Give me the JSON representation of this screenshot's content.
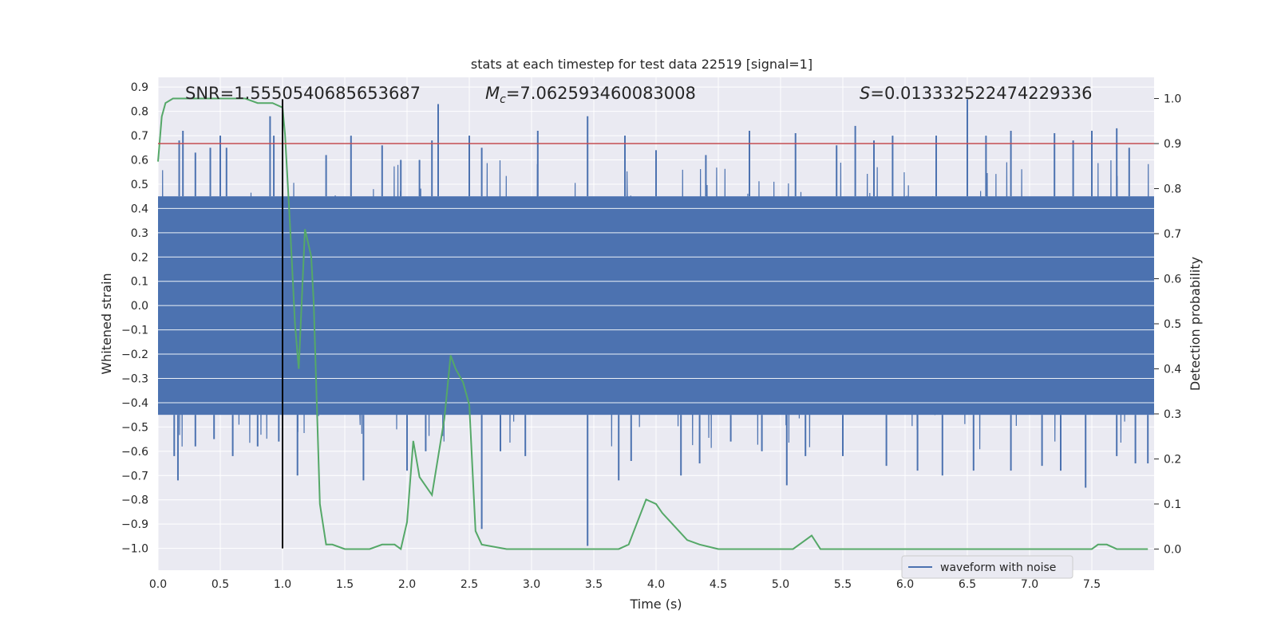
{
  "chart_data": {
    "type": "line",
    "title": "stats at each timestep for test data 22519 [signal=1]",
    "xlabel": "Time (s)",
    "ylabel": "Whitened strain",
    "ylabel_right": "Detection probability",
    "xlim": [
      0.0,
      8.0
    ],
    "ylim": [
      -1.09,
      0.94
    ],
    "ylim_right": [
      -0.047,
      1.047
    ],
    "x_ticks": [
      "0.0",
      "0.5",
      "1.0",
      "1.5",
      "2.0",
      "2.5",
      "3.0",
      "3.5",
      "4.0",
      "4.5",
      "5.0",
      "5.5",
      "6.0",
      "6.5",
      "7.0",
      "7.5"
    ],
    "y_ticks": [
      "0.9",
      "0.8",
      "0.7",
      "0.6",
      "0.5",
      "0.4",
      "0.3",
      "0.2",
      "0.1",
      "0.0",
      "-0.1",
      "-0.2",
      "-0.3",
      "-0.4",
      "-0.5",
      "-0.6",
      "-0.7",
      "-0.8",
      "-0.9",
      "-1.0"
    ],
    "y_ticks_right": [
      "1.0",
      "0.9",
      "0.8",
      "0.7",
      "0.6",
      "0.5",
      "0.4",
      "0.3",
      "0.2",
      "0.1",
      "0.0"
    ],
    "grid": true,
    "legend_position": "lower-right",
    "legend": [
      "waveform with noise"
    ],
    "annotations": {
      "snr": "SNR=1.5550540685653687",
      "mc_prefix": "M",
      "mc_sub": "c",
      "mc_value": "=7.062593460083008",
      "s_prefix": "S",
      "s_value": "=0.013332522474229336"
    },
    "colors": {
      "waveform": "#4c72b0",
      "probability": "#55a868",
      "threshold": "#c44e52",
      "marker": "#000000",
      "background": "#eaeaf2",
      "grid": "#ffffff"
    },
    "threshold_probability": 0.9,
    "marker_time": 1.0,
    "marker_y_range": [
      -1.0,
      0.85
    ],
    "series": [
      {
        "name": "waveform with noise",
        "axis": "left",
        "style": "dense noise trace",
        "band": [
          -0.45,
          0.45
        ],
        "approx_range": [
          -1.0,
          0.85
        ],
        "spikes": [
          [
            0.17,
            0.68
          ],
          [
            0.2,
            0.72
          ],
          [
            0.3,
            0.63
          ],
          [
            0.42,
            0.65
          ],
          [
            0.5,
            0.7
          ],
          [
            0.55,
            0.65
          ],
          [
            0.9,
            0.78
          ],
          [
            0.93,
            0.7
          ],
          [
            1.0,
            0.8
          ],
          [
            1.35,
            0.62
          ],
          [
            1.55,
            0.7
          ],
          [
            1.8,
            0.66
          ],
          [
            1.95,
            0.6
          ],
          [
            2.1,
            0.6
          ],
          [
            2.2,
            0.68
          ],
          [
            2.25,
            0.83
          ],
          [
            2.5,
            0.7
          ],
          [
            2.6,
            0.65
          ],
          [
            3.05,
            0.72
          ],
          [
            3.45,
            0.78
          ],
          [
            3.75,
            0.7
          ],
          [
            4.0,
            0.64
          ],
          [
            4.4,
            0.62
          ],
          [
            4.75,
            0.72
          ],
          [
            5.12,
            0.71
          ],
          [
            5.45,
            0.66
          ],
          [
            5.6,
            0.74
          ],
          [
            5.75,
            0.68
          ],
          [
            5.9,
            0.7
          ],
          [
            6.25,
            0.7
          ],
          [
            6.5,
            0.85
          ],
          [
            6.65,
            0.7
          ],
          [
            6.85,
            0.72
          ],
          [
            7.2,
            0.71
          ],
          [
            7.35,
            0.68
          ],
          [
            7.5,
            0.72
          ],
          [
            7.7,
            0.73
          ],
          [
            7.8,
            0.65
          ],
          [
            0.16,
            -0.72
          ],
          [
            0.13,
            -0.62
          ],
          [
            0.3,
            -0.58
          ],
          [
            0.45,
            -0.55
          ],
          [
            0.6,
            -0.62
          ],
          [
            0.8,
            -0.58
          ],
          [
            0.97,
            -0.56
          ],
          [
            1.12,
            -0.7
          ],
          [
            1.65,
            -0.72
          ],
          [
            2.0,
            -0.68
          ],
          [
            2.15,
            -0.6
          ],
          [
            2.6,
            -0.92
          ],
          [
            2.75,
            -0.6
          ],
          [
            2.95,
            -0.62
          ],
          [
            3.45,
            -0.99
          ],
          [
            3.7,
            -0.72
          ],
          [
            3.8,
            -0.64
          ],
          [
            4.2,
            -0.7
          ],
          [
            4.35,
            -0.65
          ],
          [
            4.6,
            -0.56
          ],
          [
            4.85,
            -0.6
          ],
          [
            5.05,
            -0.74
          ],
          [
            5.2,
            -0.62
          ],
          [
            5.5,
            -0.62
          ],
          [
            5.85,
            -0.66
          ],
          [
            6.1,
            -0.68
          ],
          [
            6.3,
            -0.7
          ],
          [
            6.55,
            -0.68
          ],
          [
            6.85,
            -0.68
          ],
          [
            7.1,
            -0.66
          ],
          [
            7.25,
            -0.68
          ],
          [
            7.45,
            -0.75
          ],
          [
            7.7,
            -0.62
          ],
          [
            7.85,
            -0.65
          ],
          [
            7.95,
            -0.65
          ]
        ]
      },
      {
        "name": "",
        "axis": "right",
        "style": "line",
        "x": [
          0.0,
          0.03,
          0.06,
          0.12,
          0.2,
          0.35,
          0.5,
          0.7,
          0.8,
          0.92,
          1.0,
          1.02,
          1.06,
          1.1,
          1.13,
          1.18,
          1.23,
          1.25,
          1.3,
          1.35,
          1.4,
          1.5,
          1.6,
          1.7,
          1.8,
          1.9,
          1.95,
          2.0,
          2.05,
          2.1,
          2.2,
          2.3,
          2.35,
          2.39,
          2.45,
          2.5,
          2.55,
          2.6,
          2.8,
          3.0,
          3.2,
          3.4,
          3.5,
          3.6,
          3.7,
          3.78,
          3.85,
          3.92,
          4.0,
          4.05,
          4.15,
          4.25,
          4.35,
          4.5,
          4.7,
          4.9,
          5.0,
          5.05,
          5.1,
          5.2,
          5.25,
          5.32,
          5.4,
          5.5,
          5.8,
          6.0,
          6.1,
          6.5,
          7.0,
          7.3,
          7.5,
          7.55,
          7.62,
          7.7,
          7.95
        ],
        "values": [
          0.86,
          0.96,
          0.99,
          1.0,
          1.0,
          1.0,
          1.0,
          1.0,
          0.99,
          0.99,
          0.98,
          0.92,
          0.72,
          0.5,
          0.4,
          0.71,
          0.65,
          0.55,
          0.1,
          0.01,
          0.01,
          0.0,
          0.0,
          0.0,
          0.01,
          0.01,
          0.0,
          0.06,
          0.24,
          0.16,
          0.12,
          0.29,
          0.43,
          0.4,
          0.37,
          0.32,
          0.04,
          0.01,
          0.0,
          0.0,
          0.0,
          0.0,
          0.0,
          0.0,
          0.0,
          0.01,
          0.06,
          0.11,
          0.1,
          0.08,
          0.05,
          0.02,
          0.01,
          0.0,
          0.0,
          0.0,
          0.0,
          0.0,
          0.0,
          0.02,
          0.03,
          0.0,
          0.0,
          0.0,
          0.0,
          0.0,
          0.0,
          0.0,
          0.0,
          0.0,
          0.0,
          0.01,
          0.01,
          0.0,
          0.0
        ]
      }
    ]
  }
}
